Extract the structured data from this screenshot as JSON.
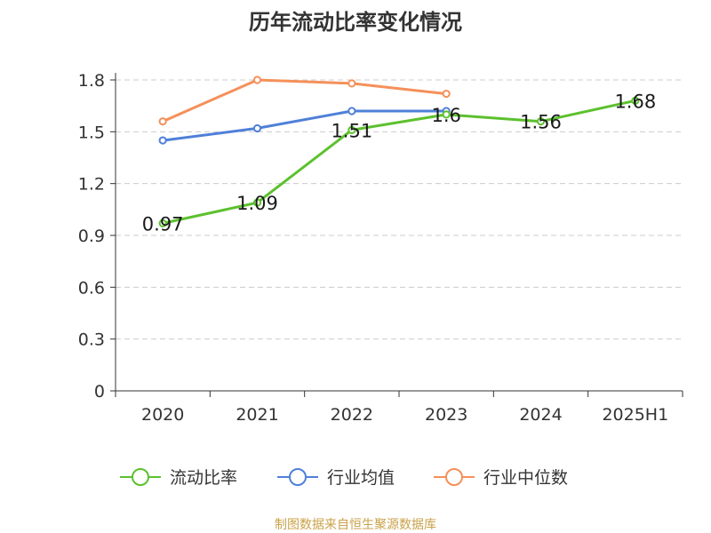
{
  "chart_data": {
    "type": "line",
    "title": "历年流动比率变化情况",
    "categories": [
      "2020",
      "2021",
      "2022",
      "2023",
      "2024",
      "2025H1"
    ],
    "ylim": [
      0,
      1.8
    ],
    "yticks": [
      "0",
      "0.3",
      "0.6",
      "0.9",
      "1.2",
      "1.5",
      "1.8"
    ],
    "grid": true,
    "legend_position": "bottom",
    "series": [
      {
        "name": "流动比率",
        "color": "#5cc12e",
        "values": [
          0.97,
          1.09,
          1.51,
          1.6,
          1.56,
          1.68
        ],
        "labels": [
          "0.97",
          "1.09",
          "1.51",
          "1.6",
          "1.56",
          "1.68"
        ]
      },
      {
        "name": "行业均值",
        "color": "#4f80d9",
        "values": [
          1.45,
          1.52,
          1.62,
          1.62,
          null,
          null
        ]
      },
      {
        "name": "行业中位数",
        "color": "#f5905a",
        "values": [
          1.56,
          1.8,
          1.78,
          1.72,
          null,
          null
        ]
      }
    ]
  },
  "source_text": "制图数据来自恒生聚源数据库"
}
